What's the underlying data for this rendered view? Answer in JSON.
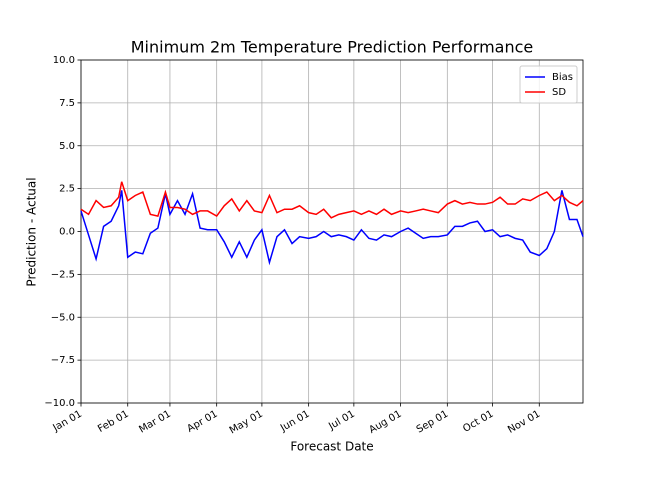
{
  "chart_data": {
    "type": "line",
    "title": "Minimum 2m Temperature Prediction Performance",
    "xlabel": "Forecast Date",
    "ylabel": "Prediction - Actual",
    "x": [
      "Jan 01",
      "Jan 06",
      "Jan 11",
      "Jan 16",
      "Jan 21",
      "Jan 26",
      "Jan 28",
      "Feb 01",
      "Feb 06",
      "Feb 11",
      "Feb 16",
      "Feb 21",
      "Feb 26",
      "Mar 01",
      "Mar 06",
      "Mar 11",
      "Mar 16",
      "Mar 21",
      "Mar 26",
      "Apr 01",
      "Apr 06",
      "Apr 11",
      "Apr 16",
      "Apr 21",
      "Apr 26",
      "May 01",
      "May 06",
      "May 11",
      "May 16",
      "May 21",
      "May 26",
      "Jun 01",
      "Jun 06",
      "Jun 11",
      "Jun 16",
      "Jun 21",
      "Jun 26",
      "Jul 01",
      "Jul 06",
      "Jul 11",
      "Jul 16",
      "Jul 21",
      "Jul 26",
      "Aug 01",
      "Aug 06",
      "Aug 11",
      "Aug 16",
      "Aug 21",
      "Aug 26",
      "Sep 01",
      "Sep 06",
      "Sep 11",
      "Sep 16",
      "Sep 21",
      "Sep 26",
      "Oct 01",
      "Oct 06",
      "Oct 11",
      "Oct 16",
      "Oct 21",
      "Oct 26",
      "Nov 01",
      "Nov 06",
      "Nov 11",
      "Nov 16",
      "Nov 21",
      "Nov 26",
      "Nov 30"
    ],
    "series": [
      {
        "name": "Bias",
        "color": "#0000ff",
        "values": [
          1.2,
          -0.2,
          -1.6,
          0.3,
          0.6,
          1.5,
          2.4,
          -1.5,
          -1.2,
          -1.3,
          -0.1,
          0.2,
          2.2,
          1.0,
          1.8,
          1.0,
          2.2,
          0.2,
          0.1,
          0.1,
          -0.6,
          -1.5,
          -0.6,
          -1.5,
          -0.5,
          0.1,
          -1.8,
          -0.3,
          0.1,
          -0.7,
          -0.3,
          -0.4,
          -0.3,
          0.0,
          -0.3,
          -0.2,
          -0.3,
          -0.5,
          0.1,
          -0.4,
          -0.5,
          -0.2,
          -0.3,
          0.0,
          0.2,
          -0.1,
          -0.4,
          -0.3,
          -0.3,
          -0.2,
          0.3,
          0.3,
          0.5,
          0.6,
          0.0,
          0.1,
          -0.3,
          -0.2,
          -0.4,
          -0.5,
          -1.2,
          -1.4,
          -1.0,
          0.0,
          2.4,
          0.7,
          0.7,
          -0.3
        ]
      },
      {
        "name": "SD",
        "color": "#ff0000",
        "values": [
          1.3,
          1.0,
          1.8,
          1.4,
          1.5,
          2.0,
          2.9,
          1.8,
          2.1,
          2.3,
          1.0,
          0.9,
          2.3,
          1.4,
          1.4,
          1.3,
          1.0,
          1.2,
          1.2,
          0.9,
          1.5,
          1.9,
          1.2,
          1.8,
          1.2,
          1.1,
          2.1,
          1.1,
          1.3,
          1.3,
          1.5,
          1.1,
          1.0,
          1.3,
          0.8,
          1.0,
          1.1,
          1.2,
          1.0,
          1.2,
          1.0,
          1.3,
          1.0,
          1.2,
          1.1,
          1.2,
          1.3,
          1.2,
          1.1,
          1.6,
          1.8,
          1.6,
          1.7,
          1.6,
          1.6,
          1.7,
          2.0,
          1.6,
          1.6,
          1.9,
          1.8,
          2.1,
          2.3,
          1.8,
          2.1,
          1.7,
          1.5,
          1.8
        ]
      }
    ],
    "xlim": [
      "Jan 01",
      "Nov 30"
    ],
    "xticks": [
      "Jan 01",
      "Feb 01",
      "Mar 01",
      "Apr 01",
      "May 01",
      "Jun 01",
      "Jul 01",
      "Aug 01",
      "Sep 01",
      "Oct 01",
      "Nov 01"
    ],
    "ylim": [
      -10,
      10
    ],
    "yticks": [
      {
        "value": -10,
        "label": "−10.0"
      },
      {
        "value": -7.5,
        "label": "−7.5"
      },
      {
        "value": -5,
        "label": "−5.0"
      },
      {
        "value": -2.5,
        "label": "−2.5"
      },
      {
        "value": 0,
        "label": "0.0"
      },
      {
        "value": 2.5,
        "label": "2.5"
      },
      {
        "value": 5,
        "label": "5.0"
      },
      {
        "value": 7.5,
        "label": "7.5"
      },
      {
        "value": 10,
        "label": "10.0"
      }
    ],
    "grid": true,
    "legend": "upper right"
  }
}
